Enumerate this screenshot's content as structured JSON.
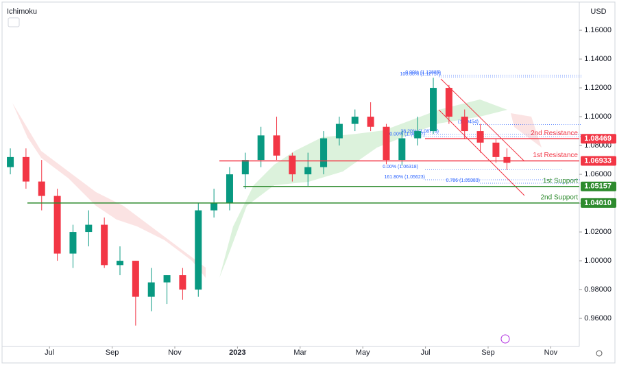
{
  "chart_data": {
    "type": "candlestick",
    "title": "Ichimoku",
    "currency": "USD",
    "x": [
      4.75,
      5.25,
      5.75,
      6.25,
      6.75,
      7.25,
      7.75,
      8.25,
      8.75,
      9.25,
      9.75,
      10.25,
      10.75,
      11.25,
      11.75,
      12.25,
      12.75,
      13.25,
      13.75,
      14.25,
      14.75,
      15.25,
      15.75,
      16.25,
      16.75,
      17.25,
      17.75,
      18.25,
      18.75,
      19.25,
      19.75,
      20.25,
      20.6
    ],
    "open": [
      1.065,
      1.072,
      1.055,
      1.045,
      1.005,
      1.02,
      1.025,
      0.997,
      1.0,
      0.975,
      0.985,
      0.99,
      0.98,
      1.035,
      1.04,
      1.06,
      1.07,
      1.087,
      1.073,
      1.06,
      1.065,
      1.085,
      1.095,
      1.1,
      1.093,
      1.07,
      1.085,
      1.09,
      1.12,
      1.1,
      1.09,
      1.082,
      1.072
    ],
    "high": [
      1.078,
      1.078,
      1.07,
      1.05,
      1.025,
      1.035,
      1.03,
      1.01,
      1.0,
      0.995,
      0.99,
      0.995,
      1.04,
      1.05,
      1.065,
      1.075,
      1.093,
      1.1,
      1.075,
      1.075,
      1.09,
      1.1,
      1.105,
      1.11,
      1.095,
      1.09,
      1.1,
      1.127,
      1.122,
      1.105,
      1.095,
      1.085,
      1.078
    ],
    "low": [
      1.06,
      1.05,
      1.035,
      1.0,
      0.995,
      1.01,
      0.995,
      0.99,
      0.955,
      0.965,
      0.97,
      0.973,
      0.975,
      1.03,
      1.035,
      1.05,
      1.065,
      1.07,
      1.055,
      1.052,
      1.06,
      1.08,
      1.09,
      1.09,
      1.067,
      1.066,
      1.08,
      1.088,
      1.095,
      1.085,
      1.075,
      1.068,
      1.063
    ],
    "close": [
      1.072,
      1.055,
      1.045,
      1.005,
      1.02,
      1.025,
      0.997,
      1.0,
      0.975,
      0.985,
      0.99,
      0.98,
      1.035,
      1.04,
      1.06,
      1.07,
      1.087,
      1.073,
      1.06,
      1.065,
      1.085,
      1.095,
      1.1,
      1.093,
      1.07,
      1.085,
      1.09,
      1.12,
      1.1,
      1.09,
      1.082,
      1.072,
      1.068
    ],
    "up_color": "#089981",
    "down_color": "#f23645",
    "xlim": [
      4.53,
      22.91
    ],
    "ylim": [
      0.9429,
      1.1786
    ],
    "xticks": [
      {
        "value": 6,
        "label": "Jul"
      },
      {
        "value": 8,
        "label": "Sep"
      },
      {
        "value": 10,
        "label": "Nov"
      },
      {
        "value": 12,
        "label": "2023"
      },
      {
        "value": 14,
        "label": "Mar"
      },
      {
        "value": 16,
        "label": "May"
      },
      {
        "value": 18,
        "label": "Jul"
      },
      {
        "value": 20,
        "label": "Sep"
      },
      {
        "value": 22,
        "label": "Nov"
      }
    ],
    "yticks": [
      {
        "value": 0.96,
        "label": "0.96000"
      },
      {
        "value": 0.98,
        "label": "0.98000"
      },
      {
        "value": 1.0,
        "label": "1.00000"
      },
      {
        "value": 1.02,
        "label": "1.02000"
      },
      {
        "value": 1.04,
        "label": "1.04000"
      },
      {
        "value": 1.06,
        "label": "1.06000"
      },
      {
        "value": 1.08,
        "label": "1.08000"
      },
      {
        "value": 1.1,
        "label": "1.10000"
      },
      {
        "value": 1.12,
        "label": "1.12000"
      },
      {
        "value": 1.14,
        "label": "1.14000"
      },
      {
        "value": 1.16,
        "label": "1.16000"
      }
    ],
    "levels": [
      {
        "name": "2nd Resistance",
        "value": 1.08469,
        "label": "1.08469",
        "color": "#f23645"
      },
      {
        "name": "1st Resistance",
        "value": 1.06933,
        "label": "1.06933",
        "color": "#f23645"
      },
      {
        "name": "1st Support",
        "value": 1.05157,
        "label": "1.05157",
        "color": "#2e8b2e"
      },
      {
        "name": "2nd Support",
        "value": 1.0401,
        "label": "1.04010",
        "color": "#2e8b2e"
      }
    ],
    "fib_levels": [
      {
        "text": "0.00% (1.12885)",
        "value": 1.12885
      },
      {
        "text": "100.00% (1.12757)",
        "value": 1.12757
      },
      {
        "text": "(1.09454)",
        "value": 1.09454
      },
      {
        "text": "38.20% (1.08778)",
        "value": 1.08778
      },
      {
        "text": "100.00% (1.08597)",
        "value": 1.08597
      },
      {
        "text": "0.00% (1.06318)",
        "value": 1.06318
      },
      {
        "text": "161.80% (1.05623)",
        "value": 1.05623
      },
      {
        "text": "0.786 (1.05383)",
        "value": 1.05383
      }
    ]
  }
}
